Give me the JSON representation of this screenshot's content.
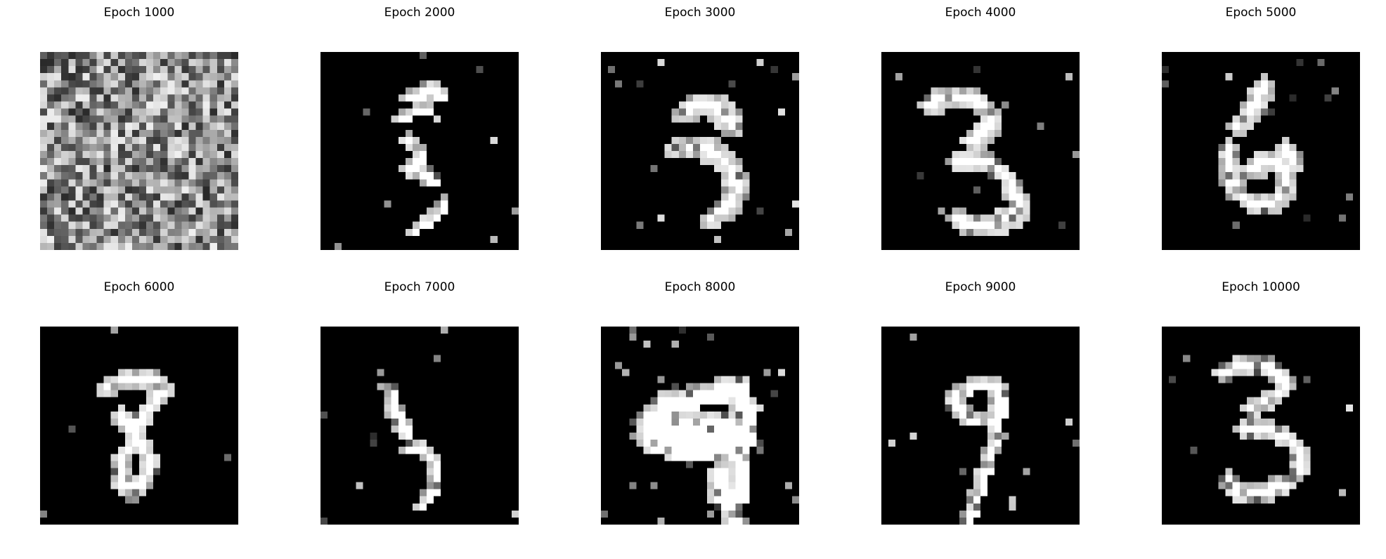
{
  "figure": {
    "panels": [
      {
        "title": "Epoch 1000",
        "pattern": "noise"
      },
      {
        "title": "Epoch 2000",
        "pattern": "digit-5-sparse"
      },
      {
        "title": "Epoch 3000",
        "pattern": "digit-3-blocky"
      },
      {
        "title": "Epoch 4000",
        "pattern": "digit-3"
      },
      {
        "title": "Epoch 5000",
        "pattern": "digit-6-blob"
      },
      {
        "title": "Epoch 6000",
        "pattern": "digit-8"
      },
      {
        "title": "Epoch 7000",
        "pattern": "digit-5-thin"
      },
      {
        "title": "Epoch 8000",
        "pattern": "blob-large"
      },
      {
        "title": "Epoch 9000",
        "pattern": "digit-9"
      },
      {
        "title": "Epoch 10000",
        "pattern": "digit-3-clean"
      }
    ]
  }
}
